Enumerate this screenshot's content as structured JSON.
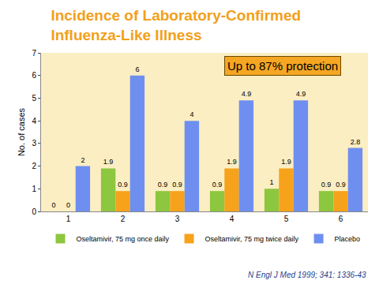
{
  "chart_data": {
    "type": "bar",
    "title": "Incidence of Laboratory-Confirmed Influenza-Like Illness",
    "y_label": "No. of cases",
    "categories": [
      "1",
      "2",
      "3",
      "4",
      "5",
      "6"
    ],
    "series": [
      {
        "name": "Oseltamivir, 75 mg once daily",
        "color": "#8dc63f",
        "values": [
          0,
          1.9,
          0.9,
          0.9,
          1,
          0.9
        ]
      },
      {
        "name": "Oseltamivir, 75 mg twice daily",
        "color": "#f7a21b",
        "values": [
          0,
          0.9,
          0.9,
          1.9,
          1.9,
          0.9
        ]
      },
      {
        "name": "Placebo",
        "color": "#6f8ff0",
        "values": [
          2,
          6,
          4,
          4.9,
          4.9,
          2.8
        ]
      }
    ],
    "ylim": [
      0,
      7
    ],
    "yticks": [
      0,
      1,
      2,
      3,
      4,
      5,
      6,
      7
    ],
    "grid": false,
    "legend": "bottom",
    "data_labels": true,
    "annotations": [
      "Up to 87% protection",
      "N Engl J Med 1999; 341: 1336-43"
    ]
  }
}
